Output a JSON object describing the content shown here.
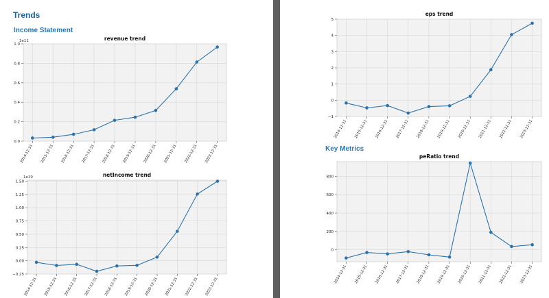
{
  "page": {
    "title": "Trends",
    "income_section": "Income Statement",
    "metrics_section": "Key Metrics"
  },
  "chart_data": [
    {
      "type": "line",
      "title": "revenue trend",
      "categories": [
        "2014-12-31",
        "2015-12-31",
        "2016-12-31",
        "2017-12-31",
        "2018-12-31",
        "2019-12-31",
        "2020-12-31",
        "2021-12-31",
        "2022-12-31",
        "2023-12-31"
      ],
      "series": [
        {
          "values": [
            0.032,
            0.04,
            0.07,
            0.117,
            0.214,
            0.246,
            0.315,
            0.538,
            0.813,
            0.967
          ]
        }
      ],
      "multiplier": "1e11",
      "ylim": [
        0,
        1.0
      ],
      "yticks": [
        0.0,
        0.2,
        0.4,
        0.6,
        0.8,
        1.0
      ],
      "ytick_labels": [
        "0.0",
        "0.2",
        "0.4",
        "0.6",
        "0.8",
        "1.0"
      ],
      "grid": true,
      "line_color": "#2c73ad"
    },
    {
      "type": "line",
      "title": "netIncome trend",
      "categories": [
        "2014-12-31",
        "2015-12-31",
        "2016-12-31",
        "2017-12-31",
        "2018-12-31",
        "2019-12-31",
        "2020-12-31",
        "2021-12-31",
        "2022-12-31",
        "2023-12-31"
      ],
      "series": [
        {
          "values": [
            -0.029,
            -0.089,
            -0.067,
            -0.198,
            -0.098,
            -0.086,
            0.069,
            0.556,
            1.258,
            1.5
          ]
        }
      ],
      "multiplier": "1e10",
      "ylim": [
        -0.25,
        1.52
      ],
      "yticks": [
        -0.25,
        0.0,
        0.25,
        0.5,
        0.75,
        1.0,
        1.25,
        1.5
      ],
      "ytick_labels": [
        "−0.25",
        "0.00",
        "0.25",
        "0.50",
        "0.75",
        "1.00",
        "1.25",
        "1.50"
      ],
      "grid": true,
      "line_color": "#2c73ad"
    },
    {
      "type": "line",
      "title": "eps trend",
      "categories": [
        "2014-12-31",
        "2015-12-31",
        "2016-12-31",
        "2017-12-31",
        "2018-12-31",
        "2019-12-31",
        "2020-12-31",
        "2021-12-31",
        "2022-12-31",
        "2023-12-31"
      ],
      "series": [
        {
          "values": [
            -0.17,
            -0.47,
            -0.33,
            -0.79,
            -0.39,
            -0.34,
            0.24,
            1.88,
            4.05,
            4.75
          ]
        }
      ],
      "ylim": [
        -1,
        5
      ],
      "yticks": [
        -1,
        0,
        1,
        2,
        3,
        4,
        5
      ],
      "ytick_labels": [
        "−1",
        "0",
        "1",
        "2",
        "3",
        "4",
        "5"
      ],
      "grid": true,
      "line_color": "#2c73ad"
    },
    {
      "type": "line",
      "title": "peRatio trend",
      "categories": [
        "2014-12-31",
        "2015-12-31",
        "2016-12-31",
        "2017-12-31",
        "2018-12-31",
        "2019-12-31",
        "2020-12-31",
        "2021-12-31",
        "2022-12-31",
        "2023-12-31"
      ],
      "series": [
        {
          "values": [
            -90,
            -30,
            -45,
            -20,
            -55,
            -80,
            945,
            190,
            35,
            55
          ]
        }
      ],
      "ylim": [
        -130,
        960
      ],
      "yticks": [
        0,
        200,
        400,
        600,
        800
      ],
      "ytick_labels": [
        "0",
        "200",
        "400",
        "600",
        "800"
      ],
      "grid": true,
      "line_color": "#2c73ad"
    }
  ]
}
